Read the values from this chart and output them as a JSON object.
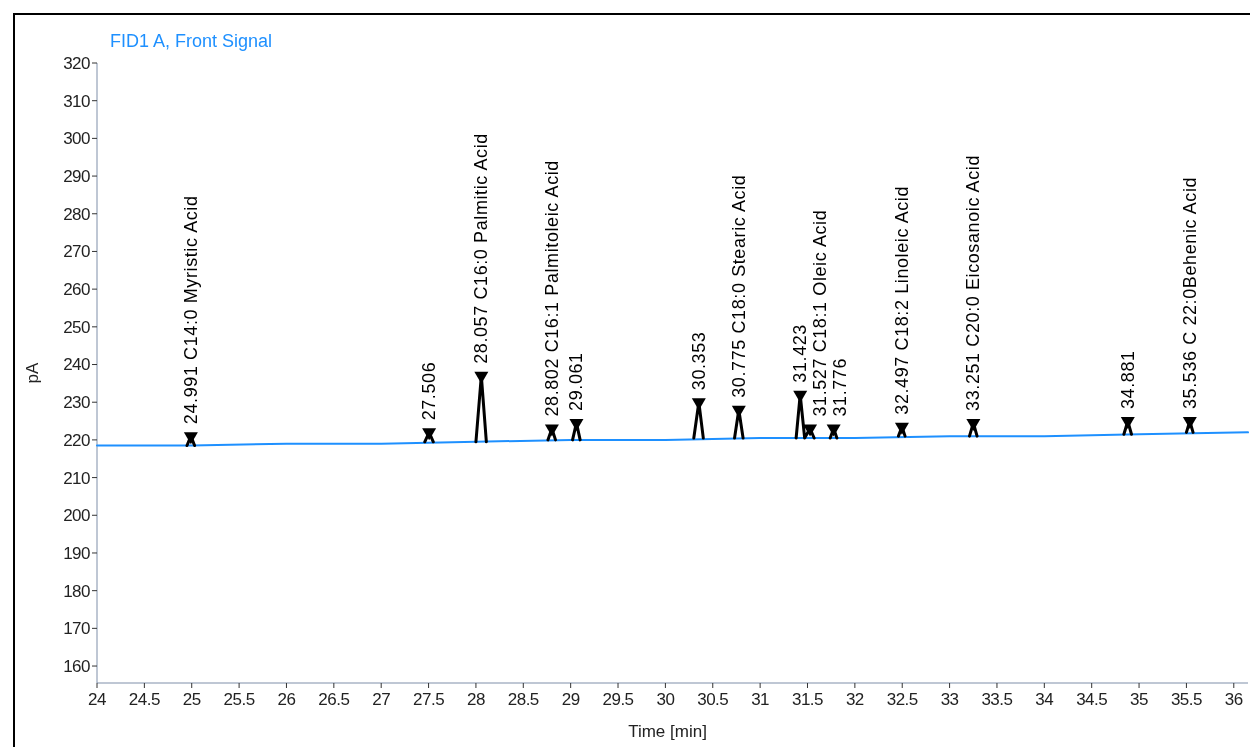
{
  "chart_data": {
    "type": "line",
    "title": "FID1 A, Front Signal",
    "xlabel": "Time [min]",
    "ylabel": "pA",
    "xlim": [
      24,
      36.15
    ],
    "ylim": [
      155.5,
      320
    ],
    "xticks": [
      24,
      24.5,
      25,
      25.5,
      26,
      26.5,
      27,
      27.5,
      28,
      28.5,
      29,
      29.5,
      30,
      30.5,
      31,
      31.5,
      32,
      32.5,
      33,
      33.5,
      34,
      34.5,
      35,
      35.5,
      36
    ],
    "yticks": [
      160,
      170,
      180,
      190,
      200,
      210,
      220,
      230,
      240,
      250,
      260,
      270,
      280,
      290,
      300,
      310,
      320
    ],
    "grid": false,
    "series": [
      {
        "color": "#1e90ff",
        "x": [
          24,
          25,
          26,
          27,
          28,
          29,
          30,
          31,
          32,
          33,
          34,
          35,
          36.15
        ],
        "values": [
          218.5,
          218.5,
          219,
          219,
          219.5,
          220,
          220,
          220.5,
          220.5,
          221,
          221,
          221.5,
          222
        ]
      },
      {
        "color": "#000000",
        "x": [
          24.95,
          24.991,
          25.03,
          25.1,
          27.46,
          27.506,
          27.55,
          27.6,
          28.0,
          28.057,
          28.11,
          28.2,
          28.76,
          28.802,
          28.84,
          28.9,
          29.02,
          29.061,
          29.1,
          29.2,
          30.3,
          30.353,
          30.4,
          30.5,
          30.73,
          30.775,
          30.82,
          30.9,
          31.38,
          31.423,
          31.47,
          31.527,
          31.57,
          31.65,
          31.74,
          31.776,
          31.81,
          31.9,
          32.46,
          32.497,
          32.53,
          32.6,
          33.21,
          33.251,
          33.29,
          33.4,
          34.84,
          34.881,
          34.92,
          35.0,
          35.5,
          35.536,
          35.57
        ],
        "values": [
          218.5,
          221,
          218.5,
          null,
          219.5,
          222,
          219.5,
          null,
          219.5,
          237,
          219.5,
          null,
          220,
          223,
          220,
          null,
          220,
          224.5,
          220,
          null,
          220.5,
          230,
          220.5,
          null,
          220.5,
          228,
          220.5,
          null,
          220.5,
          232,
          220.5,
          223,
          220.5,
          null,
          220.5,
          223,
          220.5,
          null,
          221,
          223.5,
          221,
          null,
          221,
          224.5,
          221,
          null,
          221.5,
          225,
          221.5,
          null,
          222,
          225,
          222
        ]
      },
      {
        "type": "scatter",
        "color": "#000000",
        "marker": "triangle",
        "x": [
          24.991,
          27.506,
          28.057,
          28.802,
          29.061,
          30.353,
          30.775,
          31.423,
          31.527,
          31.776,
          32.497,
          33.251,
          34.881,
          35.536
        ],
        "values": [
          221,
          222,
          237,
          223,
          224.5,
          230,
          228,
          232,
          223,
          223,
          223.5,
          224.5,
          225,
          225
        ]
      }
    ],
    "annotations": [
      {
        "text": "24.991 C14:0 Myristic Acid",
        "x": 24.991,
        "y": 221
      },
      {
        "text": "27.506",
        "x": 27.506,
        "y": 222
      },
      {
        "text": "28.057 C16:0 Palmitic Acid",
        "x": 28.057,
        "y": 237
      },
      {
        "text": "28.802 C16:1 Palmitoleic Acid",
        "x": 28.802,
        "y": 223
      },
      {
        "text": "29.061",
        "x": 29.061,
        "y": 224.5
      },
      {
        "text": "30.353",
        "x": 30.353,
        "y": 230
      },
      {
        "text": "30.775 C18:0 Stearic Acid",
        "x": 30.775,
        "y": 228
      },
      {
        "text": "31.423",
        "x": 31.423,
        "y": 232
      },
      {
        "text": "31.527 C18:1 Oleic Acid",
        "x": 31.527,
        "y": 223
      },
      {
        "text": "31.776",
        "x": 31.776,
        "y": 223
      },
      {
        "text": "32.497 C18:2 Linoleic Acid",
        "x": 32.497,
        "y": 223.5
      },
      {
        "text": "33.251 C20:0 Eicosanoic Acid",
        "x": 33.251,
        "y": 224.5
      },
      {
        "text": "34.881",
        "x": 34.881,
        "y": 225
      },
      {
        "text": "35.536 C 22:0Behenic Acid",
        "x": 35.536,
        "y": 225
      }
    ]
  }
}
